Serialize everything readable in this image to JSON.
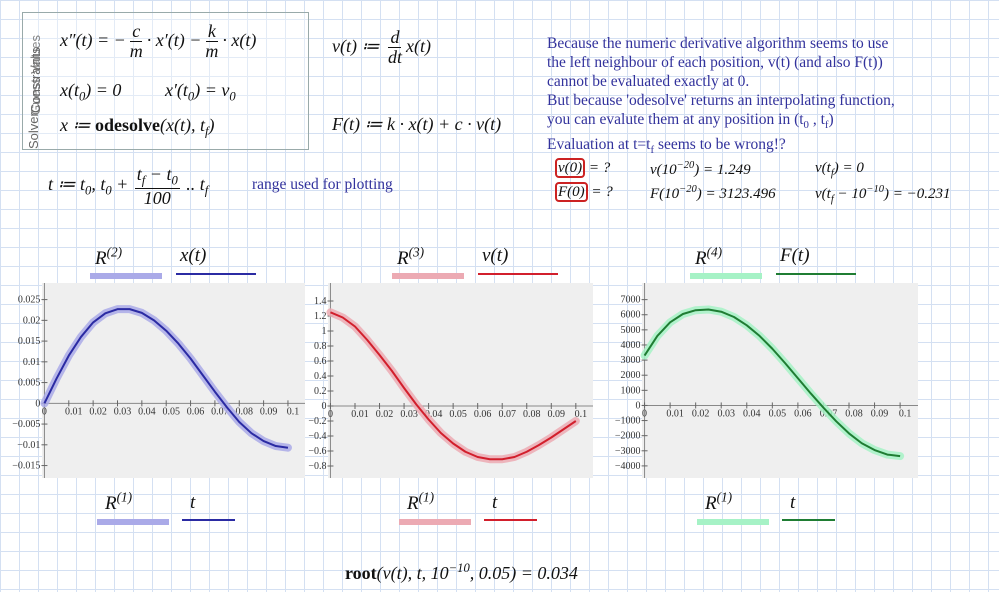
{
  "solver": {
    "labels": [
      "Solver",
      "Constraints",
      "Guess Values"
    ]
  },
  "expressions": {
    "ode": [
      "x″(t) = −",
      {
        "num": "c",
        "den": "m"
      },
      "· x′(t) −",
      {
        "num": "k",
        "den": "m"
      },
      "· x(t)"
    ],
    "ic1": [
      "x(t",
      {
        "sub": "0"
      },
      ") = 0"
    ],
    "ic2": [
      "x′(t",
      {
        "sub": "0"
      },
      ") = v",
      {
        "sub": "0"
      }
    ],
    "solve": [
      "x ≔ ",
      {
        "bold": "odesolve"
      },
      "(x(t), t",
      {
        "sub": "f"
      },
      ")"
    ],
    "vdef": [
      "v(t) ≔ ",
      {
        "num": "d",
        "den": "dt"
      },
      "x(t)"
    ],
    "Fdef": [
      "F(t) ≔ k · x(t) + c · v(t)"
    ],
    "range": [
      "t ≔ t",
      {
        "sub": "0"
      },
      ", t",
      {
        "sub": "0"
      },
      " + ",
      {
        "num": [
          "t",
          {
            "sub": "f"
          },
          " − t",
          {
            "sub": "0"
          }
        ],
        "den": "100"
      },
      " .. t",
      {
        "sub": "f"
      }
    ],
    "root": [
      {
        "bold": "root"
      },
      "(v(t), t, 10",
      {
        "sup": "−10"
      },
      ", 0.05) = 0.034"
    ]
  },
  "range_note": "range used for plotting",
  "note": [
    [
      "Because the numeric derivative algorithm seems to use"
    ],
    [
      "the left neighbour of each position, v(t) (and also F(t))"
    ],
    [
      "cannot be evaluated exactly at 0."
    ],
    [
      "But because 'odesolve' returns an interpolating function,"
    ],
    [
      "you can evalute them at any position in (t",
      {
        "sub": "0"
      },
      " , t",
      {
        "sub": "f"
      },
      ")"
    ],
    [
      "Evaluation at t=t",
      {
        "sub": "f"
      },
      " seems to be wrong!?"
    ]
  ],
  "evaluations": [
    [
      {
        "box": "v(0)"
      },
      " = ?"
    ],
    [
      "v(10",
      {
        "sup": "−20"
      },
      ") = 1.249"
    ],
    [
      "v(t",
      {
        "sub": "f"
      },
      ") = 0"
    ],
    [
      {
        "box": "F(0)"
      },
      " = ?"
    ],
    [
      "F(10",
      {
        "sup": "−20"
      },
      ") = 3123.496"
    ],
    [
      "v(t",
      {
        "sub": "f"
      },
      " − 10",
      {
        "sup": "−10"
      },
      ") = −0.231"
    ]
  ],
  "chart_data": [
    {
      "type": "line",
      "color": "#2b2ba3",
      "band_color": "#aaaae8",
      "y_legend": [
        [
          "R",
          {
            "sup": "(2)"
          }
        ],
        "x(t)"
      ],
      "x_legend": [
        [
          "R",
          {
            "sup": "(1)"
          }
        ],
        "t"
      ],
      "x": [
        0,
        0.005,
        0.01,
        0.015,
        0.02,
        0.025,
        0.03,
        0.035,
        0.04,
        0.045,
        0.05,
        0.055,
        0.06,
        0.065,
        0.07,
        0.075,
        0.08,
        0.085,
        0.09,
        0.095,
        0.1
      ],
      "values": [
        0,
        0.006,
        0.0115,
        0.016,
        0.0195,
        0.0217,
        0.0227,
        0.0227,
        0.0218,
        0.02,
        0.0175,
        0.0144,
        0.0108,
        0.0068,
        0.0028,
        -0.001,
        -0.0045,
        -0.0072,
        -0.0091,
        -0.0103,
        -0.0107
      ],
      "xlim": [
        -0.001,
        0.107
      ],
      "ylim": [
        -0.018,
        0.029
      ],
      "xticks": [
        0,
        0.01,
        0.02,
        0.03,
        0.04,
        0.05,
        0.06,
        0.07,
        0.08,
        0.09,
        0.1
      ],
      "yticks": [
        {
          "value": -0.015,
          "label": "−0.015"
        },
        {
          "value": -0.01,
          "label": "−0.01"
        },
        {
          "value": -0.005,
          "label": "−0.005"
        },
        0,
        0.005,
        0.01,
        0.015,
        0.02,
        0.025
      ]
    },
    {
      "type": "line",
      "color": "#d21f2c",
      "band_color": "#ecaab3",
      "y_legend": [
        [
          "R",
          {
            "sup": "(3)"
          }
        ],
        "v(t)"
      ],
      "x_legend": [
        [
          "R",
          {
            "sup": "(1)"
          }
        ],
        "t"
      ],
      "x": [
        0,
        0.005,
        0.01,
        0.015,
        0.02,
        0.025,
        0.03,
        0.035,
        0.04,
        0.045,
        0.05,
        0.055,
        0.06,
        0.065,
        0.07,
        0.075,
        0.08,
        0.085,
        0.09,
        0.095,
        0.1
      ],
      "values": [
        1.249,
        1.18,
        1.06,
        0.88,
        0.68,
        0.47,
        0.24,
        0.02,
        -0.18,
        -0.36,
        -0.5,
        -0.61,
        -0.68,
        -0.71,
        -0.71,
        -0.68,
        -0.61,
        -0.52,
        -0.42,
        -0.31,
        -0.2
      ],
      "xlim": [
        -0.001,
        0.107
      ],
      "ylim": [
        -0.96,
        1.64
      ],
      "xticks": [
        0,
        0.01,
        0.02,
        0.03,
        0.04,
        0.05,
        0.06,
        0.07,
        0.08,
        0.09,
        0.1
      ],
      "yticks": [
        {
          "value": -0.8,
          "label": "−0.8"
        },
        {
          "value": -0.6,
          "label": "−0.6"
        },
        {
          "value": -0.4,
          "label": "−0.4"
        },
        {
          "value": -0.2,
          "label": "−0.2"
        },
        0,
        0.2,
        0.4,
        0.6,
        0.8,
        1,
        1.2,
        1.4
      ]
    },
    {
      "type": "line",
      "color": "#1f7d33",
      "band_color": "#a6f2c6",
      "y_legend": [
        [
          "R",
          {
            "sup": "(4)"
          }
        ],
        "F(t)"
      ],
      "x_legend": [
        [
          "R",
          {
            "sup": "(1)"
          }
        ],
        "t"
      ],
      "x": [
        0,
        0.005,
        0.01,
        0.015,
        0.02,
        0.025,
        0.03,
        0.035,
        0.04,
        0.045,
        0.05,
        0.055,
        0.06,
        0.065,
        0.07,
        0.075,
        0.08,
        0.085,
        0.09,
        0.095,
        0.1
      ],
      "values": [
        3300,
        4600,
        5500,
        6050,
        6300,
        6350,
        6200,
        5850,
        5300,
        4600,
        3750,
        2800,
        1800,
        800,
        -150,
        -1050,
        -1850,
        -2500,
        -2950,
        -3250,
        -3350
      ],
      "xlim": [
        -0.001,
        0.107
      ],
      "ylim": [
        -4800,
        8100
      ],
      "xticks": [
        0,
        0.01,
        0.02,
        0.03,
        0.04,
        0.05,
        0.06,
        0.07,
        0.08,
        0.09,
        0.1
      ],
      "yticks": [
        {
          "value": -4000,
          "label": "−4000"
        },
        {
          "value": -3000,
          "label": "−3000"
        },
        {
          "value": -2000,
          "label": "−2000"
        },
        {
          "value": -1000,
          "label": "−1000"
        },
        0,
        1000,
        2000,
        3000,
        4000,
        5000,
        6000,
        7000
      ]
    }
  ]
}
